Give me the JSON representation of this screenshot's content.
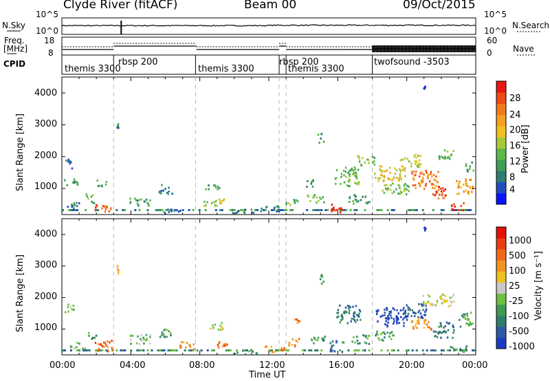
{
  "header": {
    "station": "Clyde River (fitACF)",
    "beam": "Beam 00",
    "date": "09/Oct/2015"
  },
  "top_panel": {
    "nsky_label": "N.Sky",
    "nsky_ticks": [
      "10^5",
      "10^0"
    ],
    "nsearch_ticks": [
      "10^5",
      "10^0"
    ],
    "nsearch_label": "N.Search",
    "freq_label_1": "Freq.",
    "freq_label_2": "[MHz]",
    "freq_ticks": [
      "18",
      "8"
    ],
    "nave_ticks": [
      "60",
      "0"
    ],
    "nave_label": "Nave",
    "cpid_label": "CPID"
  },
  "cpid_segments": [
    {
      "label": "themis 3300",
      "start": 0.0,
      "end": 3.0
    },
    {
      "label": "rbsp 200",
      "start": 3.0,
      "end": 7.75
    },
    {
      "label": "themis 3300",
      "start": 7.75,
      "end": 12.6
    },
    {
      "label": "rbsp 200",
      "start": 12.6,
      "end": 13.0
    },
    {
      "label": "themis 3300",
      "start": 13.0,
      "end": 18.0
    },
    {
      "label": "twofsound -3503",
      "start": 18.0,
      "end": 24.0
    }
  ],
  "x_axis": {
    "label": "Time UT",
    "range": [
      0,
      24
    ],
    "ticks": [
      "00:00",
      "04:00",
      "08:00",
      "12:00",
      "16:00",
      "20:00",
      "00:00"
    ],
    "dashed_lines_hours": [
      3.0,
      7.75,
      12.6,
      13.0,
      18.0
    ]
  },
  "power_panel": {
    "ylabel": "Slant Range [km]",
    "ylim": [
      180,
      4500
    ],
    "yticks": [
      "4000",
      "3000",
      "2000",
      "1000"
    ],
    "colorbar_label": "Power [dB]",
    "colorbar_ticks": [
      "28",
      "24",
      "20",
      "16",
      "12",
      "8",
      "4"
    ],
    "colors": [
      "#0a14ff",
      "#1f4fbf",
      "#2e7d70",
      "#3e9e58",
      "#5cb848",
      "#a8c838",
      "#f0c020",
      "#f5a020",
      "#f27a1a",
      "#ee4a14",
      "#e81810"
    ]
  },
  "velocity_panel": {
    "ylabel": "Slant Range [km]",
    "ylim": [
      180,
      4500
    ],
    "yticks": [
      "4000",
      "3000",
      "2000",
      "1000"
    ],
    "colorbar_label": "Velocity [m s⁻¹]",
    "colorbar_ticks": [
      "1000",
      "500",
      "100",
      "25",
      "-25",
      "-100",
      "-500",
      "-1000"
    ],
    "colors": [
      "#1c3cc0",
      "#2f58a8",
      "#2f7e6c",
      "#3f9a4e",
      "#6cc040",
      "#c8c8c8",
      "#f0c020",
      "#f29520",
      "#ef6a18",
      "#ea3a12",
      "#e41008"
    ]
  },
  "chart_data": {
    "type": "heatmap",
    "title": "Clyde River (fitACF)",
    "xlabel": "Time UT",
    "ylabel": "Slant Range [km]",
    "xlim": [
      0,
      24
    ],
    "ylim": [
      180,
      4500
    ],
    "power_patches": [
      {
        "t": 0.3,
        "r": 1800,
        "dt": 0.5,
        "dr": 300,
        "level": 2
      },
      {
        "t": 0.5,
        "r": 1200,
        "dt": 0.8,
        "dr": 250,
        "level": 3
      },
      {
        "t": 0.7,
        "r": 500,
        "dt": 0.9,
        "dr": 200,
        "level": 2
      },
      {
        "t": 1.6,
        "r": 700,
        "dt": 0.5,
        "dr": 300,
        "level": 4
      },
      {
        "t": 2.3,
        "r": 400,
        "dt": 1.0,
        "dr": 250,
        "level": 9
      },
      {
        "t": 2.3,
        "r": 1200,
        "dt": 0.6,
        "dr": 200,
        "level": 3
      },
      {
        "t": 3.2,
        "r": 3000,
        "dt": 0.1,
        "dr": 200,
        "level": 2
      },
      {
        "t": 4.5,
        "r": 600,
        "dt": 1.2,
        "dr": 250,
        "level": 3
      },
      {
        "t": 6.0,
        "r": 1000,
        "dt": 0.8,
        "dr": 300,
        "level": 2
      },
      {
        "t": 6.3,
        "r": 300,
        "dt": 1.2,
        "dr": 150,
        "level": 2
      },
      {
        "t": 8.8,
        "r": 600,
        "dt": 1.2,
        "dr": 250,
        "level": 5
      },
      {
        "t": 8.7,
        "r": 1100,
        "dt": 0.8,
        "dr": 200,
        "level": 3
      },
      {
        "t": 10.5,
        "r": 300,
        "dt": 1.4,
        "dr": 150,
        "level": 2
      },
      {
        "t": 12.0,
        "r": 400,
        "dt": 1.2,
        "dr": 200,
        "level": 2
      },
      {
        "t": 13.3,
        "r": 600,
        "dt": 0.7,
        "dr": 250,
        "level": 4
      },
      {
        "t": 14.7,
        "r": 700,
        "dt": 1.0,
        "dr": 250,
        "level": 4
      },
      {
        "t": 14.4,
        "r": 1200,
        "dt": 0.6,
        "dr": 250,
        "level": 3
      },
      {
        "t": 15.0,
        "r": 2600,
        "dt": 0.4,
        "dr": 300,
        "level": 3
      },
      {
        "t": 15.9,
        "r": 400,
        "dt": 0.8,
        "dr": 300,
        "level": 10
      },
      {
        "t": 16.5,
        "r": 1400,
        "dt": 1.4,
        "dr": 600,
        "level": 4
      },
      {
        "t": 17.2,
        "r": 700,
        "dt": 1.2,
        "dr": 300,
        "level": 3
      },
      {
        "t": 17.6,
        "r": 1900,
        "dt": 1.0,
        "dr": 300,
        "level": 4
      },
      {
        "t": 19.0,
        "r": 1500,
        "dt": 1.8,
        "dr": 500,
        "level": 6
      },
      {
        "t": 19.3,
        "r": 1000,
        "dt": 1.6,
        "dr": 400,
        "level": 4
      },
      {
        "t": 20.2,
        "r": 1900,
        "dt": 1.2,
        "dr": 400,
        "level": 5
      },
      {
        "t": 21.0,
        "r": 1300,
        "dt": 1.6,
        "dr": 600,
        "level": 8
      },
      {
        "t": 21.8,
        "r": 900,
        "dt": 1.0,
        "dr": 400,
        "level": 9
      },
      {
        "t": 22.2,
        "r": 2100,
        "dt": 1.0,
        "dr": 300,
        "level": 4
      },
      {
        "t": 22.9,
        "r": 450,
        "dt": 0.8,
        "dr": 250,
        "level": 10
      },
      {
        "t": 23.3,
        "r": 1100,
        "dt": 1.0,
        "dr": 500,
        "level": 7
      },
      {
        "t": 23.6,
        "r": 1700,
        "dt": 0.6,
        "dr": 300,
        "level": 3
      },
      {
        "t": 21.0,
        "r": 4200,
        "dt": 0.1,
        "dr": 100,
        "level": 0
      }
    ],
    "velocity_patches": [
      {
        "t": 0.4,
        "r": 1700,
        "dt": 0.5,
        "dr": 300,
        "level": 4
      },
      {
        "t": 0.9,
        "r": 500,
        "dt": 1.0,
        "dr": 200,
        "level": 4
      },
      {
        "t": 1.8,
        "r": 800,
        "dt": 0.6,
        "dr": 250,
        "level": 3
      },
      {
        "t": 2.4,
        "r": 500,
        "dt": 1.0,
        "dr": 400,
        "level": 8
      },
      {
        "t": 3.2,
        "r": 2900,
        "dt": 0.1,
        "dr": 300,
        "level": 6
      },
      {
        "t": 4.5,
        "r": 700,
        "dt": 1.2,
        "dr": 300,
        "level": 4
      },
      {
        "t": 6.0,
        "r": 900,
        "dt": 0.8,
        "dr": 300,
        "level": 3
      },
      {
        "t": 7.2,
        "r": 500,
        "dt": 0.9,
        "dr": 250,
        "level": 7
      },
      {
        "t": 8.9,
        "r": 1100,
        "dt": 0.8,
        "dr": 250,
        "level": 5
      },
      {
        "t": 9.3,
        "r": 550,
        "dt": 0.8,
        "dr": 250,
        "level": 8
      },
      {
        "t": 10.6,
        "r": 300,
        "dt": 1.4,
        "dr": 150,
        "level": 3
      },
      {
        "t": 12.3,
        "r": 400,
        "dt": 1.2,
        "dr": 200,
        "level": 7
      },
      {
        "t": 13.4,
        "r": 600,
        "dt": 0.7,
        "dr": 250,
        "level": 7
      },
      {
        "t": 13.6,
        "r": 1300,
        "dt": 0.3,
        "dr": 200,
        "level": 8
      },
      {
        "t": 14.8,
        "r": 700,
        "dt": 1.0,
        "dr": 250,
        "level": 3
      },
      {
        "t": 15.0,
        "r": 2600,
        "dt": 0.3,
        "dr": 300,
        "level": 3
      },
      {
        "t": 15.9,
        "r": 500,
        "dt": 0.8,
        "dr": 400,
        "level": 2
      },
      {
        "t": 16.6,
        "r": 1500,
        "dt": 1.4,
        "dr": 600,
        "level": 2
      },
      {
        "t": 17.3,
        "r": 700,
        "dt": 1.0,
        "dr": 300,
        "level": 3
      },
      {
        "t": 19.1,
        "r": 1400,
        "dt": 1.8,
        "dr": 600,
        "level": 0
      },
      {
        "t": 18.6,
        "r": 800,
        "dt": 1.2,
        "dr": 300,
        "level": 3
      },
      {
        "t": 20.4,
        "r": 1600,
        "dt": 1.4,
        "dr": 500,
        "level": 1
      },
      {
        "t": 20.8,
        "r": 1200,
        "dt": 1.2,
        "dr": 400,
        "level": 7
      },
      {
        "t": 21.8,
        "r": 1950,
        "dt": 1.8,
        "dr": 400,
        "level": 5
      },
      {
        "t": 22.1,
        "r": 1000,
        "dt": 1.2,
        "dr": 500,
        "level": 2
      },
      {
        "t": 23.4,
        "r": 1300,
        "dt": 0.8,
        "dr": 500,
        "level": 3
      },
      {
        "t": 23.0,
        "r": 400,
        "dt": 1.0,
        "dr": 200,
        "level": 3
      },
      {
        "t": 21.0,
        "r": 4200,
        "dt": 0.1,
        "dr": 100,
        "level": 0
      }
    ]
  }
}
